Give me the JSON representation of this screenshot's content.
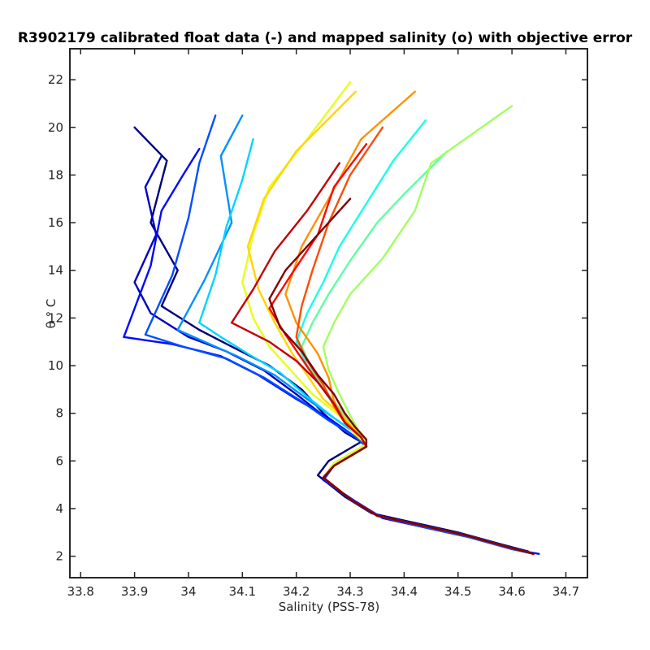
{
  "chart_data": {
    "type": "line",
    "title": "R3902179 calibrated float data (-) and mapped salinity (o) with objective error",
    "xlabel": "Salinity (PSS-78)",
    "ylabel": "θ ° C",
    "xlim": [
      33.78,
      34.74
    ],
    "ylim": [
      1.1,
      23.3
    ],
    "x_ticks": [
      33.8,
      33.9,
      34.0,
      34.1,
      34.2,
      34.3,
      34.4,
      34.5,
      34.6,
      34.7
    ],
    "x_tick_labels": [
      "33.8",
      "33.9",
      "34",
      "34.1",
      "34.2",
      "34.3",
      "34.4",
      "34.5",
      "34.6",
      "34.7"
    ],
    "y_ticks": [
      2,
      4,
      6,
      8,
      10,
      12,
      14,
      16,
      18,
      20,
      22
    ],
    "y_tick_labels": [
      "2",
      "4",
      "6",
      "8",
      "10",
      "12",
      "14",
      "16",
      "18",
      "20",
      "22"
    ],
    "grid": false,
    "colormap": "jet (profile index, blue = early, dark red = late)",
    "colors": [
      "#00008f",
      "#0000ff",
      "#0080ff",
      "#00ffff",
      "#80ff80",
      "#ffff00",
      "#ff8000",
      "#ff0000",
      "#800000"
    ],
    "series": [
      {
        "x": [
          33.9,
          33.96,
          33.93,
          33.98,
          33.95,
          34.02,
          34.08,
          34.15,
          34.21,
          34.25,
          34.29,
          34.32,
          34.26,
          34.24,
          34.29,
          34.34,
          34.42,
          34.5,
          34.58,
          34.63
        ],
        "y": [
          20.0,
          18.6,
          16.0,
          14.0,
          12.5,
          11.5,
          10.8,
          10.0,
          9.0,
          8.0,
          7.2,
          6.8,
          6.0,
          5.4,
          4.5,
          3.8,
          3.4,
          3.0,
          2.5,
          2.2
        ]
      },
      {
        "x": [
          33.95,
          33.92,
          33.94,
          33.9,
          33.93,
          34.0,
          34.07,
          34.14,
          34.2,
          34.25,
          34.3,
          34.33,
          34.27,
          34.25,
          34.3,
          34.35,
          34.43,
          34.51,
          34.59,
          34.64
        ],
        "y": [
          18.8,
          17.5,
          15.5,
          13.5,
          12.2,
          11.2,
          10.6,
          9.8,
          8.8,
          7.9,
          7.1,
          6.7,
          5.9,
          5.3,
          4.4,
          3.7,
          3.3,
          2.9,
          2.4,
          2.1
        ]
      },
      {
        "x": [
          34.02,
          33.99,
          33.95,
          33.93,
          33.88,
          33.97,
          34.06,
          34.13,
          34.2,
          34.26,
          34.31,
          34.33,
          34.27,
          34.25,
          34.31,
          34.36,
          34.44,
          34.52,
          34.6,
          34.65
        ],
        "y": [
          19.1,
          18.0,
          16.5,
          14.2,
          11.2,
          10.9,
          10.4,
          9.6,
          8.6,
          7.8,
          7.0,
          6.6,
          5.8,
          5.2,
          4.3,
          3.6,
          3.2,
          2.8,
          2.3,
          2.1
        ]
      },
      {
        "x": [
          34.05,
          34.02,
          34.0,
          33.97,
          33.92,
          33.99,
          34.07,
          34.14,
          34.21,
          34.26,
          34.31,
          34.33,
          34.27,
          34.25,
          34.3,
          34.35,
          34.44,
          34.52,
          34.6,
          34.64
        ],
        "y": [
          20.5,
          18.5,
          16.2,
          13.8,
          11.3,
          10.8,
          10.3,
          9.5,
          8.5,
          7.7,
          7.0,
          6.6,
          5.8,
          5.3,
          4.4,
          3.7,
          3.2,
          2.8,
          2.3,
          2.1
        ]
      },
      {
        "x": [
          34.1,
          34.06,
          34.08,
          34.03,
          33.98,
          34.03,
          34.09,
          34.16,
          34.22,
          34.27,
          34.32,
          34.33,
          34.27,
          34.25,
          34.3,
          34.35,
          34.43,
          34.51,
          34.59,
          34.64
        ],
        "y": [
          20.5,
          18.8,
          16.0,
          13.6,
          11.5,
          11.0,
          10.4,
          9.6,
          8.6,
          7.8,
          7.0,
          6.6,
          5.8,
          5.3,
          4.4,
          3.7,
          3.3,
          2.9,
          2.4,
          2.1
        ]
      },
      {
        "x": [
          34.12,
          34.1,
          34.07,
          34.05,
          34.02,
          34.06,
          34.11,
          34.17,
          34.22,
          34.27,
          34.32,
          34.33,
          34.27,
          34.25,
          34.3,
          34.35,
          34.43,
          34.51,
          34.59,
          34.64
        ],
        "y": [
          19.5,
          17.8,
          15.8,
          13.8,
          11.8,
          11.2,
          10.5,
          9.7,
          8.7,
          7.8,
          7.0,
          6.6,
          5.8,
          5.3,
          4.4,
          3.7,
          3.3,
          2.9,
          2.4,
          2.1
        ]
      },
      {
        "x": [
          34.44,
          34.38,
          34.33,
          34.28,
          34.25,
          34.22,
          34.2,
          34.22,
          34.25,
          34.28,
          34.31,
          34.33,
          34.27,
          34.25,
          34.3,
          34.35,
          34.43,
          34.51,
          34.59,
          34.64
        ],
        "y": [
          20.3,
          18.6,
          16.8,
          15.0,
          13.5,
          12.2,
          11.0,
          10.0,
          9.0,
          8.0,
          7.2,
          6.7,
          5.9,
          5.3,
          4.4,
          3.7,
          3.3,
          2.9,
          2.4,
          2.1
        ]
      },
      {
        "x": [
          34.48,
          34.4,
          34.35,
          34.3,
          34.26,
          34.23,
          34.21,
          34.23,
          34.26,
          34.29,
          34.32,
          34.33,
          34.27,
          34.25,
          34.3,
          34.35,
          34.43,
          34.51,
          34.59,
          34.64
        ],
        "y": [
          19.0,
          17.2,
          16.0,
          14.4,
          13.0,
          11.8,
          10.8,
          9.8,
          8.8,
          7.9,
          7.1,
          6.7,
          5.9,
          5.3,
          4.4,
          3.7,
          3.3,
          2.9,
          2.4,
          2.1
        ]
      },
      {
        "x": [
          34.6,
          34.45,
          34.42,
          34.36,
          34.3,
          34.27,
          34.25,
          34.26,
          34.28,
          34.3,
          34.32,
          34.33,
          34.27,
          34.25,
          34.3,
          34.35,
          34.43,
          34.51,
          34.59,
          34.64
        ],
        "y": [
          20.9,
          18.5,
          16.5,
          14.5,
          13.0,
          11.8,
          10.8,
          9.8,
          8.8,
          7.9,
          7.1,
          6.7,
          5.9,
          5.3,
          4.4,
          3.7,
          3.3,
          2.9,
          2.4,
          2.1
        ]
      },
      {
        "x": [
          34.3,
          34.22,
          34.15,
          34.12,
          34.1,
          34.12,
          34.15,
          34.19,
          34.23,
          34.28,
          34.31,
          34.33,
          34.27,
          34.25,
          34.3,
          34.35,
          34.43,
          34.51,
          34.59,
          34.64
        ],
        "y": [
          21.9,
          19.5,
          17.5,
          15.5,
          13.5,
          12.0,
          10.8,
          9.8,
          8.8,
          7.9,
          7.1,
          6.7,
          5.9,
          5.3,
          4.4,
          3.7,
          3.3,
          2.9,
          2.4,
          2.1
        ]
      },
      {
        "x": [
          34.31,
          34.2,
          34.14,
          34.11,
          34.13,
          34.16,
          34.19,
          34.22,
          34.25,
          34.29,
          34.32,
          34.33,
          34.27,
          34.25,
          34.3,
          34.35,
          34.43,
          34.51,
          34.59,
          34.64
        ],
        "y": [
          21.5,
          19.0,
          17.0,
          15.0,
          13.2,
          11.8,
          10.6,
          9.6,
          8.6,
          7.8,
          7.0,
          6.6,
          5.8,
          5.3,
          4.4,
          3.7,
          3.3,
          2.9,
          2.4,
          2.1
        ]
      },
      {
        "x": [
          34.42,
          34.32,
          34.26,
          34.21,
          34.18,
          34.2,
          34.24,
          34.26,
          34.27,
          34.29,
          34.32,
          34.33,
          34.27,
          34.25,
          34.3,
          34.35,
          34.43,
          34.51,
          34.59,
          34.64
        ],
        "y": [
          21.5,
          19.5,
          17.0,
          15.0,
          13.0,
          11.8,
          10.5,
          9.5,
          8.5,
          7.7,
          7.0,
          6.6,
          5.8,
          5.3,
          4.4,
          3.7,
          3.3,
          2.9,
          2.4,
          2.1
        ]
      },
      {
        "x": [
          34.36,
          34.3,
          34.26,
          34.23,
          34.21,
          34.2,
          34.22,
          34.25,
          34.27,
          34.29,
          34.32,
          34.33,
          34.27,
          34.25,
          34.3,
          34.35,
          34.43,
          34.51,
          34.59,
          34.64
        ],
        "y": [
          20.0,
          18.0,
          16.0,
          14.0,
          12.5,
          11.2,
          10.2,
          9.2,
          8.3,
          7.6,
          7.0,
          6.6,
          5.8,
          5.3,
          4.4,
          3.7,
          3.3,
          2.9,
          2.4,
          2.1
        ]
      },
      {
        "x": [
          34.33,
          34.27,
          34.24,
          34.19,
          34.15,
          34.18,
          34.21,
          34.24,
          34.27,
          34.29,
          34.32,
          34.33,
          34.27,
          34.25,
          34.3,
          34.35,
          34.43,
          34.51,
          34.59,
          34.64
        ],
        "y": [
          19.3,
          17.5,
          15.5,
          13.8,
          12.4,
          11.3,
          10.3,
          9.3,
          8.4,
          7.6,
          7.0,
          6.6,
          5.8,
          5.3,
          4.4,
          3.7,
          3.3,
          2.9,
          2.4,
          2.1
        ]
      },
      {
        "x": [
          34.28,
          34.22,
          34.16,
          34.12,
          34.08,
          34.15,
          34.2,
          34.24,
          34.27,
          34.29,
          34.32,
          34.33,
          34.27,
          34.25,
          34.3,
          34.35,
          34.43,
          34.51,
          34.59,
          34.64
        ],
        "y": [
          18.5,
          16.5,
          14.8,
          13.2,
          11.8,
          11.0,
          10.2,
          9.3,
          8.4,
          7.6,
          7.0,
          6.6,
          5.8,
          5.3,
          4.4,
          3.7,
          3.3,
          2.9,
          2.4,
          2.1
        ]
      },
      {
        "x": [
          34.3,
          34.24,
          34.18,
          34.15,
          34.17,
          34.21,
          34.24,
          34.27,
          34.29,
          34.31,
          34.33,
          34.33,
          34.27,
          34.25,
          34.3,
          34.35,
          34.43,
          34.51,
          34.59,
          34.64
        ],
        "y": [
          17.0,
          15.5,
          14.0,
          12.8,
          11.6,
          10.6,
          9.6,
          8.8,
          8.0,
          7.4,
          6.9,
          6.6,
          5.8,
          5.3,
          4.4,
          3.7,
          3.3,
          2.9,
          2.4,
          2.1
        ]
      }
    ]
  }
}
